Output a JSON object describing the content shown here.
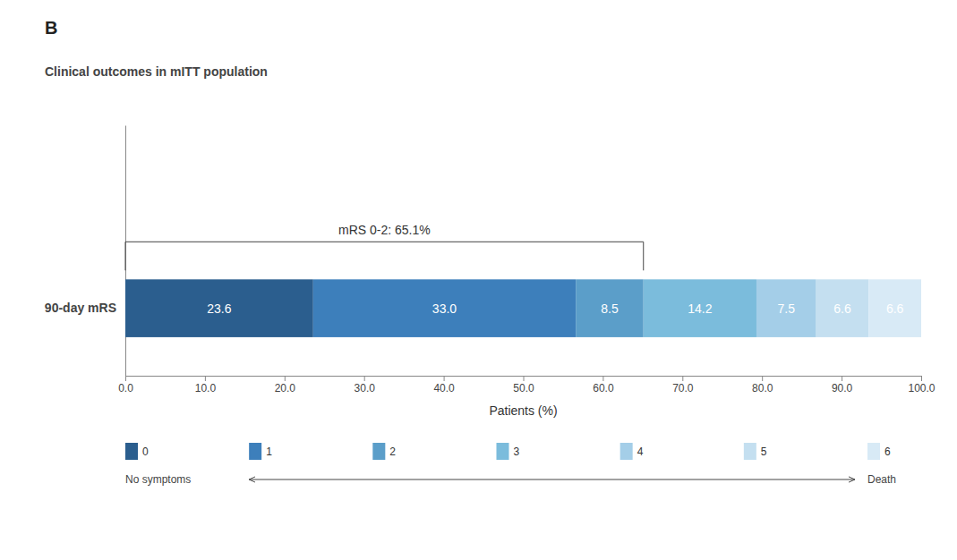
{
  "chart_data": {
    "type": "bar",
    "orientation": "horizontal",
    "stacked": true,
    "title": "B",
    "subtitle": "Clinical outcomes in mITT population",
    "categories": [
      "90-day mRS"
    ],
    "xlabel": "Patients (%)",
    "xlim": [
      0.0,
      100.0
    ],
    "xticks": [
      {
        "value": 0.0,
        "label": "0.0"
      },
      {
        "value": 10.0,
        "label": "10.0"
      },
      {
        "value": 20.0,
        "label": "20.0"
      },
      {
        "value": 30.0,
        "label": "30.0"
      },
      {
        "value": 40.0,
        "label": "40.0"
      },
      {
        "value": 50.0,
        "label": "50.0"
      },
      {
        "value": 60.0,
        "label": "60.0"
      },
      {
        "value": 70.0,
        "label": "70.0"
      },
      {
        "value": 80.0,
        "label": "80.0"
      },
      {
        "value": 90.0,
        "label": "90.0"
      },
      {
        "value": 100.0,
        "label": "100.0"
      }
    ],
    "series": [
      {
        "name": "0",
        "color": "#2B5E8E",
        "values": [
          23.6
        ],
        "value_labels": [
          "23.6"
        ]
      },
      {
        "name": "1",
        "color": "#3D7FBB",
        "values": [
          33.0
        ],
        "value_labels": [
          "33.0"
        ]
      },
      {
        "name": "2",
        "color": "#5B9EC9",
        "values": [
          8.5
        ],
        "value_labels": [
          "8.5"
        ]
      },
      {
        "name": "3",
        "color": "#7BBCDC",
        "values": [
          14.2
        ],
        "value_labels": [
          "14.2"
        ]
      },
      {
        "name": "4",
        "color": "#A4CEE8",
        "values": [
          7.5
        ],
        "value_labels": [
          "7.5"
        ]
      },
      {
        "name": "5",
        "color": "#C4DFF0",
        "values": [
          6.6
        ],
        "value_labels": [
          "6.6"
        ]
      },
      {
        "name": "6",
        "color": "#D8EAF6",
        "values": [
          6.6
        ],
        "value_labels": [
          "6.6"
        ]
      }
    ],
    "data_labels": true,
    "grid": false,
    "legend": "bottom",
    "legend_range_labels": [
      "No symptoms",
      "Death"
    ],
    "annotations": [
      {
        "text": "mRS 0-2: 65.1%",
        "start": 0,
        "end": 65.1
      }
    ]
  }
}
